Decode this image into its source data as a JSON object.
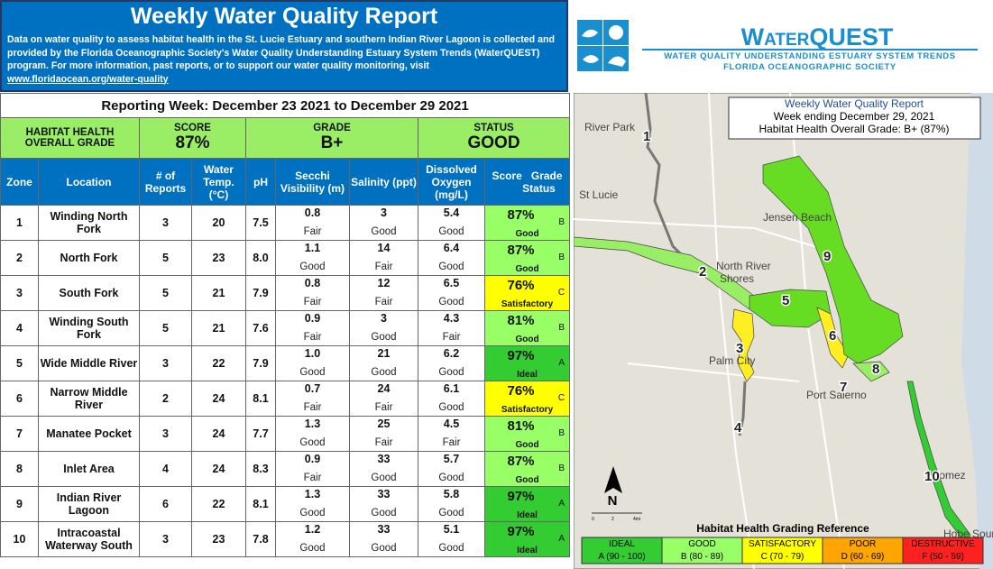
{
  "header": {
    "title": "Weekly Water Quality Report",
    "description": "Data on water quality to assess habitat health in the St. Lucie Estuary and southern Indian River Lagoon is collected and provided by the Florida Oceanographic Society's Water Quality Understanding Estuary System Trends (WaterQUEST) program.  For more information, past reports, or to support our water quality monitoring, visit ",
    "link": "www.floridaocean.org/water-quality"
  },
  "logo": {
    "name": "WaterQUEST",
    "tagline": "WATER QUALITY UNDERSTANDING ESTUARY SYSTEM TRENDS",
    "org": "FLORIDA OCEANOGRAPHIC SOCIETY"
  },
  "table": {
    "reporting_week": "Reporting Week:  December 23 2021 to December 29 2021",
    "summary": {
      "label": "HABITAT HEALTH OVERALL GRADE",
      "score_label": "SCORE",
      "score": "87%",
      "grade_label": "GRADE",
      "grade": "B+",
      "status_label": "STATUS",
      "status": "GOOD"
    },
    "columns": [
      "Zone",
      "Location",
      "# of Reports",
      "Water Temp. (°C)",
      "pH",
      "Secchi Visibility (m)",
      "Salinity (ppt)",
      "Dissolved Oxygen (mg/L)"
    ],
    "score_header": {
      "score": "Score",
      "grade": "Grade",
      "status": "Status"
    },
    "rows": [
      {
        "zone": "1",
        "location": "Winding North Fork",
        "reports": "3",
        "temp": "20",
        "ph": "7.5",
        "secchi": {
          "value": "0.8",
          "rating": "Fair"
        },
        "salinity": {
          "value": "3",
          "rating": "Good"
        },
        "oxygen": {
          "value": "5.4",
          "rating": "Good"
        },
        "score": "87%",
        "grade": "B",
        "status": "Good",
        "color": "#99ff66"
      },
      {
        "zone": "2",
        "location": "North Fork",
        "reports": "5",
        "temp": "23",
        "ph": "8.0",
        "secchi": {
          "value": "1.1",
          "rating": "Good"
        },
        "salinity": {
          "value": "14",
          "rating": "Fair"
        },
        "oxygen": {
          "value": "6.4",
          "rating": "Good"
        },
        "score": "87%",
        "grade": "B",
        "status": "Good",
        "color": "#99ff66"
      },
      {
        "zone": "3",
        "location": "South Fork",
        "reports": "5",
        "temp": "21",
        "ph": "7.9",
        "secchi": {
          "value": "0.8",
          "rating": "Fair"
        },
        "salinity": {
          "value": "12",
          "rating": "Fair"
        },
        "oxygen": {
          "value": "6.5",
          "rating": "Good"
        },
        "score": "76%",
        "grade": "C",
        "status": "Satisfactory",
        "color": "#ffff00"
      },
      {
        "zone": "4",
        "location": "Winding South Fork",
        "reports": "5",
        "temp": "21",
        "ph": "7.6",
        "secchi": {
          "value": "0.9",
          "rating": "Fair"
        },
        "salinity": {
          "value": "3",
          "rating": "Good"
        },
        "oxygen": {
          "value": "4.3",
          "rating": "Fair"
        },
        "score": "81%",
        "grade": "B",
        "status": "Good",
        "color": "#99ff66"
      },
      {
        "zone": "5",
        "location": "Wide Middle River",
        "reports": "3",
        "temp": "22",
        "ph": "7.9",
        "secchi": {
          "value": "1.0",
          "rating": "Good"
        },
        "salinity": {
          "value": "21",
          "rating": "Good"
        },
        "oxygen": {
          "value": "6.2",
          "rating": "Good"
        },
        "score": "97%",
        "grade": "A",
        "status": "Ideal",
        "color": "#33cc33"
      },
      {
        "zone": "6",
        "location": "Narrow Middle River",
        "reports": "2",
        "temp": "24",
        "ph": "8.1",
        "secchi": {
          "value": "0.7",
          "rating": "Fair"
        },
        "salinity": {
          "value": "24",
          "rating": "Fair"
        },
        "oxygen": {
          "value": "6.1",
          "rating": "Good"
        },
        "score": "76%",
        "grade": "C",
        "status": "Satisfactory",
        "color": "#ffff00"
      },
      {
        "zone": "7",
        "location": "Manatee Pocket",
        "reports": "3",
        "temp": "24",
        "ph": "7.7",
        "secchi": {
          "value": "1.3",
          "rating": "Good"
        },
        "salinity": {
          "value": "25",
          "rating": "Fair"
        },
        "oxygen": {
          "value": "4.5",
          "rating": "Fair"
        },
        "score": "81%",
        "grade": "B",
        "status": "Good",
        "color": "#99ff66"
      },
      {
        "zone": "8",
        "location": "Inlet Area",
        "reports": "4",
        "temp": "24",
        "ph": "8.3",
        "secchi": {
          "value": "0.9",
          "rating": "Fair"
        },
        "salinity": {
          "value": "33",
          "rating": "Good"
        },
        "oxygen": {
          "value": "5.7",
          "rating": "Good"
        },
        "score": "87%",
        "grade": "B",
        "status": "Good",
        "color": "#99ff66"
      },
      {
        "zone": "9",
        "location": "Indian River Lagoon",
        "reports": "6",
        "temp": "22",
        "ph": "8.1",
        "secchi": {
          "value": "1.3",
          "rating": "Good"
        },
        "salinity": {
          "value": "33",
          "rating": "Good"
        },
        "oxygen": {
          "value": "5.8",
          "rating": "Good"
        },
        "score": "97%",
        "grade": "A",
        "status": "Ideal",
        "color": "#33cc33"
      },
      {
        "zone": "10",
        "location": "Intracoastal Waterway South",
        "reports": "3",
        "temp": "23",
        "ph": "7.8",
        "secchi": {
          "value": "1.2",
          "rating": "Good"
        },
        "salinity": {
          "value": "33",
          "rating": "Good"
        },
        "oxygen": {
          "value": "5.1",
          "rating": "Good"
        },
        "score": "97%",
        "grade": "A",
        "status": "Ideal",
        "color": "#33cc33"
      }
    ]
  },
  "map": {
    "legend": [
      "Weekly Water Quality Report",
      "Week ending December 29, 2021",
      "Habitat Health Overall Grade: B+ (87%)"
    ],
    "places": [
      "River Park",
      "St Lucie",
      "Jensen Beach",
      "North River",
      "Shores",
      "Palm City",
      "Port Salerno",
      "Gomez",
      "Hobe Sound"
    ],
    "zone_labels": [
      "1",
      "2",
      "3",
      "4",
      "5",
      "6",
      "7",
      "8",
      "9",
      "10"
    ],
    "north": "N",
    "scale": [
      "0",
      "2",
      "4mi"
    ],
    "reference_title": "Habitat Health Grading Reference",
    "reference": [
      {
        "name": "IDEAL",
        "range": "A (90 - 100)",
        "color": "#33cc33"
      },
      {
        "name": "GOOD",
        "range": "B (80 - 89)",
        "color": "#99ff66"
      },
      {
        "name": "SATISFACTORY",
        "range": "C (70 - 79)",
        "color": "#ffff00"
      },
      {
        "name": "POOR",
        "range": "D (60 - 69)",
        "color": "#ffa500"
      },
      {
        "name": "DESTRUCTIVE",
        "range": "F (50 - 59)",
        "color": "#ff2020"
      }
    ]
  }
}
